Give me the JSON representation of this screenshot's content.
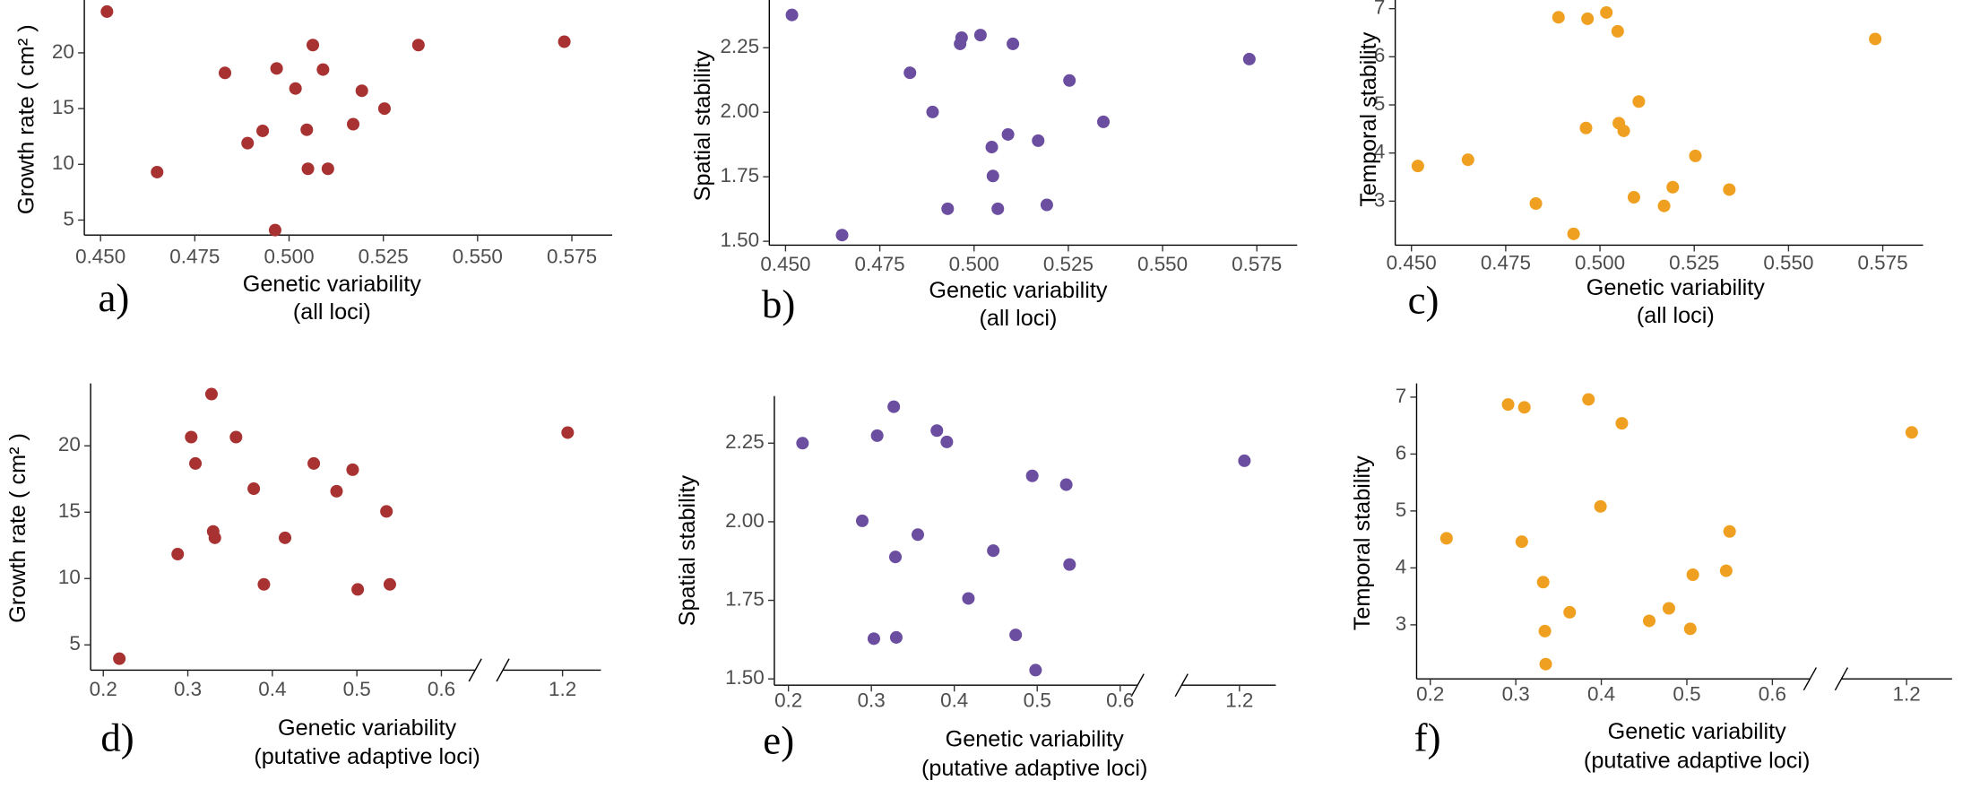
{
  "chart_data": [
    {
      "type": "scatter",
      "panel_label": "a)",
      "y_label": "Growth rate ( cm² )",
      "x_label": [
        "Genetic variability",
        "(all loci)"
      ],
      "color": "#a83232",
      "x": [
        0.4517,
        0.465,
        0.483,
        0.489,
        0.493,
        0.4963,
        0.4967,
        0.5017,
        0.5047,
        0.505,
        0.5063,
        0.509,
        0.5103,
        0.517,
        0.5193,
        0.5253,
        0.5343,
        0.573
      ],
      "values": [
        23.7,
        9.3,
        18.2,
        11.9,
        13.0,
        4.1,
        18.6,
        16.8,
        13.1,
        9.6,
        20.7,
        18.5,
        9.6,
        13.6,
        16.6,
        15.0,
        20.7,
        21.0
      ],
      "xlim": [
        0.4457,
        0.5857
      ],
      "ylim": [
        3.65,
        24.74
      ],
      "xticks": [
        {
          "value": 0.45,
          "label": "0.450"
        },
        0.475,
        {
          "value": 0.5,
          "label": "0.500"
        },
        0.525,
        {
          "value": 0.55,
          "label": "0.550"
        },
        0.575
      ],
      "yticks": [
        5,
        10,
        15,
        20
      ]
    },
    {
      "type": "scatter",
      "panel_label": "b)",
      "y_label": "Spatial stability",
      "x_label": [
        "Genetic variability",
        "(all loci)"
      ],
      "color": "#6b4ea0",
      "x": [
        0.4517,
        0.465,
        0.483,
        0.489,
        0.493,
        0.4963,
        0.4967,
        0.5017,
        0.5047,
        0.505,
        0.5063,
        0.509,
        0.5103,
        0.517,
        0.5193,
        0.5253,
        0.5343,
        0.573
      ],
      "values": [
        2.377,
        1.524,
        2.153,
        2.001,
        1.626,
        2.265,
        2.289,
        2.299,
        1.865,
        1.753,
        1.626,
        1.914,
        2.265,
        1.89,
        1.641,
        2.123,
        1.963,
        2.206
      ],
      "xlim": [
        0.4457,
        0.5857
      ],
      "ylim": [
        1.485,
        2.435
      ],
      "xticks": [
        {
          "value": 0.45,
          "label": "0.450"
        },
        0.475,
        {
          "value": 0.5,
          "label": "0.500"
        },
        0.525,
        {
          "value": 0.55,
          "label": "0.550"
        },
        0.575
      ],
      "yticks": [
        {
          "value": 1.5,
          "label": "1.50"
        },
        1.75,
        {
          "value": 2.0,
          "label": "2.00"
        },
        2.25
      ]
    },
    {
      "type": "scatter",
      "panel_label": "c)",
      "y_label": "Temporal stability",
      "x_label": [
        "Genetic variability",
        "(all loci)"
      ],
      "color": "#f0a020",
      "x": [
        0.4517,
        0.465,
        0.483,
        0.489,
        0.493,
        0.4963,
        0.4967,
        0.5017,
        0.5047,
        0.505,
        0.5063,
        0.509,
        0.5103,
        0.517,
        0.5193,
        0.5253,
        0.5343,
        0.573
      ],
      "values": [
        3.73,
        3.86,
        2.95,
        6.82,
        2.32,
        4.52,
        6.79,
        6.92,
        6.53,
        4.62,
        4.46,
        3.08,
        5.07,
        2.9,
        3.29,
        3.94,
        3.24,
        6.37
      ],
      "xlim": [
        0.4457,
        0.5857
      ],
      "ylim": [
        2.085,
        7.18
      ],
      "xticks": [
        {
          "value": 0.45,
          "label": "0.450"
        },
        0.475,
        {
          "value": 0.5,
          "label": "0.500"
        },
        0.525,
        {
          "value": 0.55,
          "label": "0.550"
        },
        0.575
      ],
      "yticks": [
        3,
        4,
        5,
        6,
        7
      ]
    },
    {
      "type": "scatter",
      "panel_label": "d)",
      "y_label": "Growth rate ( cm² )",
      "x_label": [
        "Genetic variability",
        "(putative adaptive loci)"
      ],
      "color": "#a83232",
      "x": [
        0.219,
        0.288,
        0.304,
        0.309,
        0.328,
        0.33,
        0.332,
        0.357,
        0.378,
        0.39,
        0.415,
        0.449,
        0.476,
        0.495,
        0.501,
        0.535,
        0.539,
        1.206
      ],
      "values": [
        3.96,
        11.84,
        20.66,
        18.67,
        23.9,
        13.55,
        13.07,
        20.66,
        16.77,
        9.56,
        13.07,
        18.67,
        16.58,
        18.2,
        9.18,
        15.06,
        9.56,
        21.0
      ],
      "xlim": [
        0.185,
        1.245
      ],
      "xbreak": [
        0.64,
        1.13
      ],
      "ylim": [
        3.1,
        24.7
      ],
      "xticks": [
        0.2,
        0.3,
        0.4,
        0.5,
        0.6,
        1.2
      ],
      "yticks": [
        5,
        10,
        15,
        20
      ]
    },
    {
      "type": "scatter",
      "panel_label": "e)",
      "y_label": "Spatial stability",
      "x_label": [
        "Genetic variability",
        "(putative adaptive loci)"
      ],
      "color": "#6b4ea0",
      "x": [
        0.217,
        0.307,
        0.327,
        0.379,
        0.391,
        0.289,
        0.329,
        0.356,
        0.303,
        0.33,
        0.417,
        0.447,
        0.474,
        0.494,
        0.535,
        0.539,
        0.498,
        1.206
      ],
      "values": [
        2.25,
        2.274,
        2.366,
        2.29,
        2.254,
        2.003,
        1.888,
        1.959,
        1.628,
        1.632,
        1.756,
        1.908,
        1.64,
        2.146,
        2.118,
        1.864,
        1.528,
        2.194
      ],
      "xlim": [
        0.183,
        1.244
      ],
      "xbreak": [
        0.621,
        1.13
      ],
      "ylim": [
        1.48,
        2.4
      ],
      "xticks": [
        0.2,
        0.3,
        0.4,
        0.5,
        0.6,
        1.2
      ],
      "yticks": [
        {
          "value": 1.5,
          "label": "1.50"
        },
        1.75,
        {
          "value": 2.0,
          "label": "2.00"
        },
        2.25
      ]
    },
    {
      "type": "scatter",
      "panel_label": "f)",
      "y_label": "Temporal stability",
      "x_label": [
        "Genetic variability",
        "(putative adaptive loci)"
      ],
      "color": "#f0a020",
      "x": [
        0.219,
        0.291,
        0.31,
        0.307,
        0.332,
        0.334,
        0.335,
        0.363,
        0.385,
        0.399,
        0.424,
        0.456,
        0.479,
        0.504,
        0.507,
        0.546,
        0.55,
        1.206
      ],
      "values": [
        4.52,
        6.87,
        6.82,
        4.46,
        3.75,
        2.89,
        2.31,
        3.22,
        6.96,
        5.08,
        6.54,
        3.07,
        3.29,
        2.93,
        3.88,
        3.95,
        4.64,
        6.38
      ],
      "xlim": [
        0.184,
        1.253
      ],
      "xbreak": [
        0.644,
        1.124
      ],
      "ylim": [
        2.05,
        7.24
      ],
      "xticks": [
        0.2,
        0.3,
        0.4,
        0.5,
        0.6,
        1.2
      ],
      "yticks": [
        3,
        4,
        5,
        6,
        7
      ]
    }
  ]
}
